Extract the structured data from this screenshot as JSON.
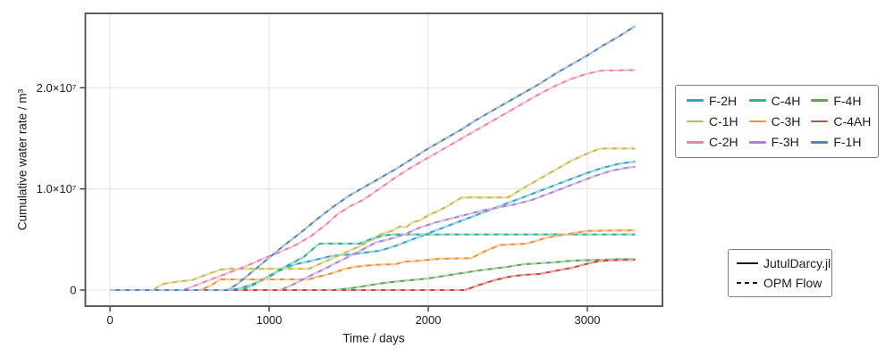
{
  "chart_data": {
    "type": "line",
    "title": "",
    "xlabel": "Time / days",
    "ylabel": "Cumulative water rate / m³",
    "x_ticks": [
      0,
      1000,
      2000,
      3000
    ],
    "x_tick_labels": [
      "0",
      "1000",
      "2000",
      "3000"
    ],
    "y_ticks": [
      0,
      10000000,
      20000000
    ],
    "y_tick_labels": [
      "0",
      "1.0×10⁷",
      "2.0×10⁷"
    ],
    "xlim": [
      -155,
      3472
    ],
    "ylim": [
      -1590000,
      27360000
    ],
    "grid": true,
    "grid_color": "#e9e9e9",
    "axis_color": "#545454",
    "tick_color": "#2a2a2a",
    "y_unit": "m³",
    "y_scale": 1000000,
    "legend_position": "right-outside",
    "note_styles": "each well has two overlapping curves: solid = JutulDarcy.jl, dashed = OPM Flow",
    "series": [
      {
        "name": "F-2H",
        "color": "#36a2c9",
        "light_color": "#9ed6e6",
        "points": [
          [
            0,
            0
          ],
          [
            740,
            0
          ],
          [
            800,
            0.1
          ],
          [
            900,
            0.6
          ],
          [
            1000,
            1.3
          ],
          [
            1060,
            1.9
          ],
          [
            1120,
            2.3
          ],
          [
            1180,
            2.6
          ],
          [
            1240,
            2.8
          ],
          [
            1320,
            3.1
          ],
          [
            1400,
            3.4
          ],
          [
            1500,
            3.5
          ],
          [
            1600,
            3.7
          ],
          [
            1700,
            3.9
          ],
          [
            1800,
            4.4
          ],
          [
            1900,
            5.0
          ],
          [
            2000,
            5.6
          ],
          [
            2100,
            6.2
          ],
          [
            2200,
            6.8
          ],
          [
            2300,
            7.4
          ],
          [
            2400,
            8.0
          ],
          [
            2500,
            8.6
          ],
          [
            2600,
            9.2
          ],
          [
            2700,
            9.8
          ],
          [
            2800,
            10.4
          ],
          [
            2900,
            11.0
          ],
          [
            3000,
            11.6
          ],
          [
            3100,
            12.1
          ],
          [
            3200,
            12.5
          ],
          [
            3300,
            12.7
          ]
        ]
      },
      {
        "name": "C-1H",
        "color": "#c8b84b",
        "light_color": "#e6dda8",
        "points": [
          [
            0,
            0
          ],
          [
            270,
            0
          ],
          [
            330,
            0.6
          ],
          [
            430,
            0.85
          ],
          [
            520,
            1.0
          ],
          [
            600,
            1.5
          ],
          [
            700,
            2.05
          ],
          [
            760,
            2.1
          ],
          [
            1250,
            2.1
          ],
          [
            1350,
            2.8
          ],
          [
            1450,
            3.5
          ],
          [
            1550,
            4.2
          ],
          [
            1650,
            5.0
          ],
          [
            1700,
            5.5
          ],
          [
            1780,
            5.9
          ],
          [
            1820,
            6.3
          ],
          [
            1860,
            6.2
          ],
          [
            1900,
            6.7
          ],
          [
            1950,
            6.9
          ],
          [
            2000,
            7.4
          ],
          [
            2060,
            7.8
          ],
          [
            2120,
            8.3
          ],
          [
            2210,
            9.15
          ],
          [
            2500,
            9.15
          ],
          [
            2600,
            10.1
          ],
          [
            2700,
            11.0
          ],
          [
            2800,
            11.9
          ],
          [
            2900,
            12.8
          ],
          [
            3000,
            13.5
          ],
          [
            3080,
            14.0
          ],
          [
            3300,
            14.0
          ]
        ]
      },
      {
        "name": "C-2H",
        "color": "#f07eab",
        "light_color": "#f9c5d9",
        "points": [
          [
            0,
            0
          ],
          [
            460,
            0
          ],
          [
            560,
            0.6
          ],
          [
            660,
            1.2
          ],
          [
            760,
            1.8
          ],
          [
            860,
            2.4
          ],
          [
            960,
            3.1
          ],
          [
            1060,
            3.7
          ],
          [
            1160,
            4.4
          ],
          [
            1260,
            5.3
          ],
          [
            1360,
            6.5
          ],
          [
            1430,
            7.5
          ],
          [
            1500,
            8.2
          ],
          [
            1600,
            9.0
          ],
          [
            1700,
            10.1
          ],
          [
            1800,
            11.2
          ],
          [
            1900,
            12.2
          ],
          [
            2000,
            13.1
          ],
          [
            2100,
            14.0
          ],
          [
            2200,
            14.9
          ],
          [
            2300,
            15.8
          ],
          [
            2400,
            16.7
          ],
          [
            2500,
            17.6
          ],
          [
            2600,
            18.5
          ],
          [
            2700,
            19.4
          ],
          [
            2800,
            20.2
          ],
          [
            2900,
            20.9
          ],
          [
            3000,
            21.4
          ],
          [
            3090,
            21.7
          ],
          [
            3300,
            21.75
          ]
        ]
      },
      {
        "name": "C-4H",
        "color": "#35ae93",
        "light_color": "#9fdcc9",
        "points": [
          [
            0,
            0
          ],
          [
            830,
            0
          ],
          [
            900,
            0.5
          ],
          [
            1000,
            1.4
          ],
          [
            1100,
            2.3
          ],
          [
            1160,
            2.8
          ],
          [
            1220,
            3.3
          ],
          [
            1300,
            4.4
          ],
          [
            1320,
            4.6
          ],
          [
            1570,
            4.6
          ],
          [
            1650,
            5.1
          ],
          [
            1720,
            5.4
          ],
          [
            1780,
            5.5
          ],
          [
            3300,
            5.5
          ]
        ]
      },
      {
        "name": "C-3H",
        "color": "#ee9039",
        "light_color": "#f8cc9f",
        "points": [
          [
            0,
            0
          ],
          [
            570,
            0
          ],
          [
            640,
            0.5
          ],
          [
            690,
            1.05
          ],
          [
            1250,
            1.05
          ],
          [
            1300,
            1.3
          ],
          [
            1360,
            1.5
          ],
          [
            1420,
            1.8
          ],
          [
            1480,
            2.1
          ],
          [
            1540,
            2.3
          ],
          [
            1600,
            2.4
          ],
          [
            1670,
            2.5
          ],
          [
            1790,
            2.55
          ],
          [
            1850,
            2.8
          ],
          [
            1950,
            2.9
          ],
          [
            2070,
            3.1
          ],
          [
            2270,
            3.15
          ],
          [
            2350,
            3.8
          ],
          [
            2450,
            4.45
          ],
          [
            2620,
            4.6
          ],
          [
            2750,
            5.2
          ],
          [
            2900,
            5.6
          ],
          [
            3000,
            5.85
          ],
          [
            3300,
            5.9
          ]
        ]
      },
      {
        "name": "F-3H",
        "color": "#ab82cc",
        "light_color": "#d8c6ea",
        "points": [
          [
            0,
            0
          ],
          [
            1070,
            0
          ],
          [
            1150,
            0.55
          ],
          [
            1250,
            1.35
          ],
          [
            1350,
            2.1
          ],
          [
            1450,
            2.9
          ],
          [
            1550,
            3.7
          ],
          [
            1670,
            4.7
          ],
          [
            1750,
            5.0
          ],
          [
            1850,
            5.5
          ],
          [
            1950,
            6.2
          ],
          [
            2050,
            6.7
          ],
          [
            2150,
            7.1
          ],
          [
            2250,
            7.5
          ],
          [
            2350,
            7.9
          ],
          [
            2450,
            8.2
          ],
          [
            2550,
            8.5
          ],
          [
            2650,
            8.9
          ],
          [
            2750,
            9.5
          ],
          [
            2850,
            10.1
          ],
          [
            2950,
            10.7
          ],
          [
            3050,
            11.3
          ],
          [
            3150,
            11.8
          ],
          [
            3250,
            12.1
          ],
          [
            3300,
            12.2
          ]
        ]
      },
      {
        "name": "F-4H",
        "color": "#5aa454",
        "light_color": "#b0d4ad",
        "points": [
          [
            0,
            0
          ],
          [
            1400,
            0
          ],
          [
            1500,
            0.15
          ],
          [
            1600,
            0.4
          ],
          [
            1700,
            0.65
          ],
          [
            1800,
            0.85
          ],
          [
            1900,
            1.0
          ],
          [
            2000,
            1.15
          ],
          [
            2100,
            1.4
          ],
          [
            2200,
            1.65
          ],
          [
            2300,
            1.9
          ],
          [
            2400,
            2.1
          ],
          [
            2500,
            2.3
          ],
          [
            2600,
            2.55
          ],
          [
            2700,
            2.65
          ],
          [
            2800,
            2.75
          ],
          [
            2900,
            2.9
          ],
          [
            3000,
            2.95
          ],
          [
            3100,
            3.0
          ],
          [
            3200,
            3.05
          ],
          [
            3300,
            3.05
          ]
        ]
      },
      {
        "name": "C-4AH",
        "color": "#c54a47",
        "light_color": "#e4a7a5",
        "points": [
          [
            0,
            0
          ],
          [
            2230,
            0
          ],
          [
            2320,
            0.5
          ],
          [
            2420,
            1.0
          ],
          [
            2520,
            1.35
          ],
          [
            2600,
            1.5
          ],
          [
            2700,
            1.6
          ],
          [
            2800,
            1.9
          ],
          [
            2900,
            2.2
          ],
          [
            3000,
            2.6
          ],
          [
            3070,
            2.85
          ],
          [
            3150,
            2.95
          ],
          [
            3300,
            3.0
          ]
        ]
      },
      {
        "name": "F-1H",
        "color": "#5a83b5",
        "light_color": "#b0c5dc",
        "points": [
          [
            0,
            0
          ],
          [
            740,
            0
          ],
          [
            800,
            0.6
          ],
          [
            900,
            1.9
          ],
          [
            1000,
            3.2
          ],
          [
            1100,
            4.5
          ],
          [
            1200,
            5.7
          ],
          [
            1300,
            7.0
          ],
          [
            1400,
            8.2
          ],
          [
            1500,
            9.3
          ],
          [
            1600,
            10.2
          ],
          [
            1700,
            11.1
          ],
          [
            1800,
            12.0
          ],
          [
            1900,
            13.0
          ],
          [
            2000,
            14.0
          ],
          [
            2100,
            14.9
          ],
          [
            2200,
            15.8
          ],
          [
            2300,
            16.8
          ],
          [
            2400,
            17.7
          ],
          [
            2500,
            18.6
          ],
          [
            2600,
            19.5
          ],
          [
            2700,
            20.4
          ],
          [
            2800,
            21.4
          ],
          [
            2900,
            22.3
          ],
          [
            3000,
            23.2
          ],
          [
            3100,
            24.2
          ],
          [
            3200,
            25.1
          ],
          [
            3300,
            26.1
          ]
        ]
      }
    ],
    "line_style_legend": {
      "items": [
        {
          "label": "JutulDarcy.jl",
          "style": "solid",
          "color": "#1a1a1a"
        },
        {
          "label": "OPM Flow",
          "style": "dashed",
          "color": "#1a1a1a"
        }
      ]
    }
  }
}
